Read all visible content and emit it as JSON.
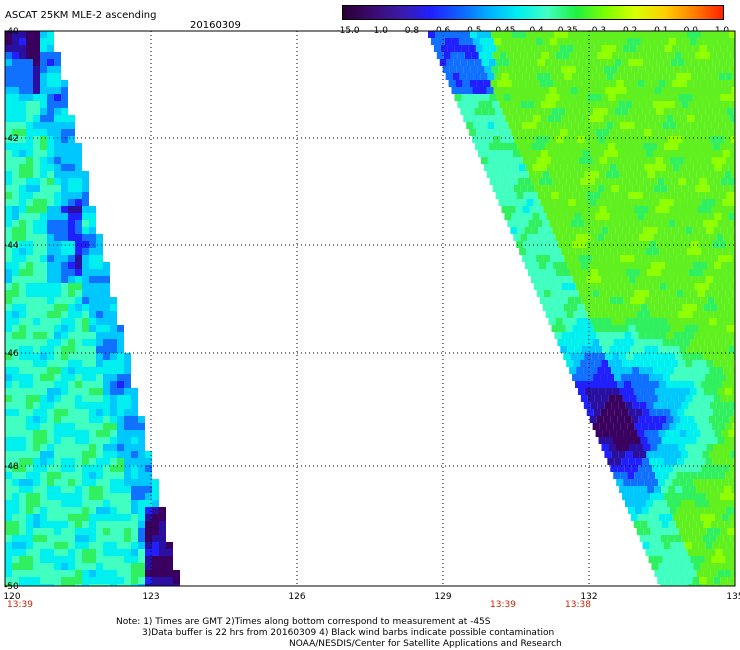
{
  "header": {
    "title": "ASCAT 25KM MLE-2 ascending",
    "date": "20160309"
  },
  "colorbar": {
    "colors": [
      "#2a0033",
      "#3b0a6e",
      "#3a1aa8",
      "#2020ff",
      "#1060ff",
      "#00b0ff",
      "#00f0f0",
      "#40ffc0",
      "#20f040",
      "#80ff00",
      "#d8ff00",
      "#ffd000",
      "#ff8000",
      "#ff2000"
    ],
    "labels": [
      "-15.0",
      "-1.0",
      "-0.8",
      "-0.6",
      "-0.5",
      "-0.45",
      "-0.4",
      "-0.35",
      "-0.3",
      "-0.2",
      "-0.1",
      "0.0",
      "1.0"
    ]
  },
  "axes": {
    "lat_labels": [
      "-40",
      "-42",
      "-44",
      "-46",
      "-48",
      "-50"
    ],
    "lon_labels": [
      "120",
      "123",
      "126",
      "129",
      "132",
      "135"
    ]
  },
  "time_labels": [
    "13:39",
    "13:39",
    "13:38"
  ],
  "notes": {
    "line1": "Note: 1) Times are GMT 2)Times along bottom correspond to measurement at -45S",
    "line2": "3)Data buffer is 22 hrs from 20160309 4) Black wind barbs indicate possible contamination",
    "line3": "NOAA/NESDIS/Center for Satellite Applications and Research"
  }
}
